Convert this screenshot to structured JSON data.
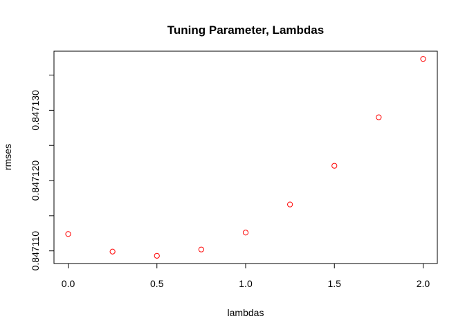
{
  "chart_data": {
    "type": "scatter",
    "title": "Tuning Parameter, Lambdas",
    "xlabel": "lambdas",
    "ylabel": "rmses",
    "x": [
      0.0,
      0.25,
      0.5,
      0.75,
      1.0,
      1.25,
      1.5,
      1.75,
      2.0
    ],
    "y": [
      0.8471124,
      0.8471099,
      0.8471093,
      0.8471102,
      0.8471126,
      0.8471166,
      0.8471221,
      0.847129,
      0.8471373
    ],
    "xlim": [
      -0.08,
      2.08
    ],
    "ylim": [
      0.8471082,
      0.8471384
    ],
    "x_ticks": [
      0.0,
      0.5,
      1.0,
      1.5,
      2.0
    ],
    "x_tick_labels": [
      "0.0",
      "0.5",
      "1.0",
      "1.5",
      "2.0"
    ],
    "y_ticks": [
      0.84711,
      0.847115,
      0.84712,
      0.847125,
      0.84713,
      0.847135
    ],
    "y_tick_labels": [
      "0.847110",
      "",
      "0.847120",
      "",
      "0.847130",
      ""
    ],
    "grid": false,
    "marker": "open-circle",
    "marker_color": "#ff0000"
  }
}
